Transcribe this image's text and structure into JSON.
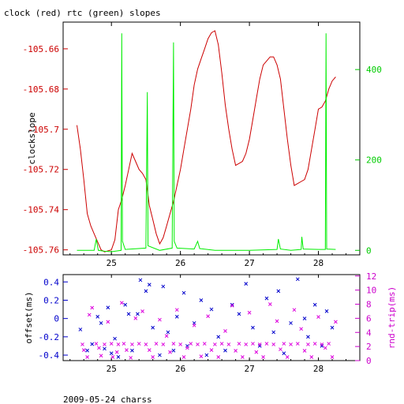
{
  "title": "clock (red) rtc (green) slopes",
  "footer": "2009-05-24 charss",
  "chart_data": [
    {
      "type": "line",
      "x_ticks": [
        25,
        26,
        27,
        28
      ],
      "x_tick_labels": [
        "25",
        "26",
        "27",
        "28"
      ],
      "xlim": [
        24.3,
        28.6
      ],
      "left_axis": {
        "label": "clockslope",
        "ticks": [
          -105.66,
          -105.68,
          -105.7,
          -105.72,
          -105.74,
          -105.76
        ],
        "tick_labels": [
          "-105.66",
          "-105.68",
          "-105.7",
          "-105.72",
          "-105.74",
          "-105.76"
        ],
        "ylim": [
          -105.7625,
          -105.6467
        ],
        "color": "#cc0000"
      },
      "right_axis": {
        "ticks": [
          0,
          200,
          400
        ],
        "tick_labels": [
          "0",
          "200",
          "400"
        ],
        "ylim": [
          -10,
          505
        ],
        "color": "#00cc00"
      },
      "series": [
        {
          "color": "#cc0000",
          "axis": "left",
          "points": [
            [
              24.5,
              -105.698
            ],
            [
              24.55,
              -105.71
            ],
            [
              24.6,
              -105.725
            ],
            [
              24.65,
              -105.742
            ],
            [
              24.7,
              -105.748
            ],
            [
              24.75,
              -105.752
            ],
            [
              24.8,
              -105.756
            ],
            [
              24.85,
              -105.76
            ],
            [
              24.9,
              -105.761
            ],
            [
              25.0,
              -105.76
            ],
            [
              25.05,
              -105.755
            ],
            [
              25.1,
              -105.74
            ],
            [
              25.15,
              -105.735
            ],
            [
              25.2,
              -105.728
            ],
            [
              25.25,
              -105.72
            ],
            [
              25.3,
              -105.712
            ],
            [
              25.35,
              -105.716
            ],
            [
              25.4,
              -105.72
            ],
            [
              25.45,
              -105.722
            ],
            [
              25.5,
              -105.725
            ],
            [
              25.55,
              -105.738
            ],
            [
              25.6,
              -105.745
            ],
            [
              25.65,
              -105.752
            ],
            [
              25.7,
              -105.757
            ],
            [
              25.75,
              -105.754
            ],
            [
              25.8,
              -105.748
            ],
            [
              25.85,
              -105.742
            ],
            [
              25.9,
              -105.736
            ],
            [
              25.95,
              -105.728
            ],
            [
              26.0,
              -105.72
            ],
            [
              26.05,
              -105.71
            ],
            [
              26.1,
              -105.7
            ],
            [
              26.15,
              -105.69
            ],
            [
              26.2,
              -105.678
            ],
            [
              26.25,
              -105.67
            ],
            [
              26.3,
              -105.665
            ],
            [
              26.35,
              -105.66
            ],
            [
              26.4,
              -105.655
            ],
            [
              26.45,
              -105.652
            ],
            [
              26.5,
              -105.651
            ],
            [
              26.55,
              -105.658
            ],
            [
              26.6,
              -105.672
            ],
            [
              26.65,
              -105.688
            ],
            [
              26.7,
              -105.7
            ],
            [
              26.75,
              -105.71
            ],
            [
              26.8,
              -105.718
            ],
            [
              26.85,
              -105.717
            ],
            [
              26.9,
              -105.716
            ],
            [
              26.95,
              -105.712
            ],
            [
              27.0,
              -105.705
            ],
            [
              27.05,
              -105.695
            ],
            [
              27.1,
              -105.685
            ],
            [
              27.15,
              -105.675
            ],
            [
              27.2,
              -105.668
            ],
            [
              27.25,
              -105.666
            ],
            [
              27.3,
              -105.664
            ],
            [
              27.35,
              -105.664
            ],
            [
              27.4,
              -105.668
            ],
            [
              27.45,
              -105.675
            ],
            [
              27.5,
              -105.69
            ],
            [
              27.55,
              -105.705
            ],
            [
              27.6,
              -105.718
            ],
            [
              27.65,
              -105.728
            ],
            [
              27.7,
              -105.727
            ],
            [
              27.75,
              -105.726
            ],
            [
              27.8,
              -105.725
            ],
            [
              27.85,
              -105.72
            ],
            [
              27.9,
              -105.71
            ],
            [
              27.95,
              -105.7
            ],
            [
              28.0,
              -105.69
            ],
            [
              28.05,
              -105.689
            ],
            [
              28.1,
              -105.686
            ],
            [
              28.15,
              -105.68
            ],
            [
              28.2,
              -105.676
            ],
            [
              28.25,
              -105.674
            ]
          ]
        },
        {
          "color": "#00ee00",
          "axis": "right",
          "points": [
            [
              24.5,
              0
            ],
            [
              24.75,
              0
            ],
            [
              24.78,
              25
            ],
            [
              24.81,
              0
            ],
            [
              24.9,
              -2
            ],
            [
              25.0,
              -3
            ],
            [
              25.14,
              0
            ],
            [
              25.15,
              480
            ],
            [
              25.16,
              20
            ],
            [
              25.2,
              2
            ],
            [
              25.5,
              5
            ],
            [
              25.52,
              350
            ],
            [
              25.53,
              10
            ],
            [
              25.7,
              0
            ],
            [
              25.88,
              5
            ],
            [
              25.9,
              460
            ],
            [
              25.91,
              20
            ],
            [
              25.95,
              5
            ],
            [
              26.2,
              3
            ],
            [
              26.25,
              20
            ],
            [
              26.28,
              4
            ],
            [
              26.5,
              0
            ],
            [
              27.0,
              0
            ],
            [
              27.4,
              2
            ],
            [
              27.42,
              25
            ],
            [
              27.45,
              3
            ],
            [
              27.6,
              0
            ],
            [
              27.75,
              2
            ],
            [
              27.76,
              30
            ],
            [
              27.78,
              3
            ],
            [
              28.0,
              2
            ],
            [
              28.1,
              2
            ],
            [
              28.11,
              480
            ],
            [
              28.12,
              3
            ],
            [
              28.25,
              2
            ]
          ]
        }
      ]
    },
    {
      "type": "scatter",
      "x_ticks": [
        25,
        26,
        27,
        28
      ],
      "x_tick_labels": [
        "25",
        "26",
        "27",
        "28"
      ],
      "xlim": [
        24.3,
        28.6
      ],
      "left_axis": {
        "label": "offset(ms)",
        "ticks": [
          0.4,
          0.2,
          0,
          -0.2,
          -0.4
        ],
        "tick_labels": [
          "0.4",
          "0.2",
          "0",
          "-0.2",
          "-0.4"
        ],
        "ylim": [
          -0.46,
          0.48
        ],
        "color": "#0000cc"
      },
      "right_axis": {
        "label": "rnd-trip(ms)",
        "ticks": [
          0,
          2,
          4,
          6,
          8,
          10,
          12
        ],
        "tick_labels": [
          "0",
          "2",
          "4",
          "6",
          "8",
          "10",
          "12"
        ],
        "ylim": [
          0,
          12.2
        ],
        "color": "#cc00cc"
      },
      "series": [
        {
          "color": "#0000cc",
          "axis": "left",
          "points": [
            [
              24.55,
              -0.12
            ],
            [
              24.65,
              -0.35
            ],
            [
              24.72,
              -0.28
            ],
            [
              24.8,
              0.02
            ],
            [
              24.85,
              -0.05
            ],
            [
              24.9,
              -0.33
            ],
            [
              24.95,
              0.12
            ],
            [
              25.0,
              -0.38
            ],
            [
              25.05,
              -0.22
            ],
            [
              25.1,
              -0.42
            ],
            [
              25.2,
              0.15
            ],
            [
              25.25,
              0.05
            ],
            [
              25.3,
              -0.35
            ],
            [
              25.38,
              0.05
            ],
            [
              25.42,
              0.42
            ],
            [
              25.5,
              0.3
            ],
            [
              25.55,
              0.37
            ],
            [
              25.6,
              -0.1
            ],
            [
              25.7,
              -0.4
            ],
            [
              25.75,
              0.35
            ],
            [
              25.82,
              -0.15
            ],
            [
              25.9,
              -0.35
            ],
            [
              25.95,
              0.02
            ],
            [
              26.05,
              0.28
            ],
            [
              26.1,
              -0.3
            ],
            [
              26.2,
              -0.05
            ],
            [
              26.3,
              0.2
            ],
            [
              26.38,
              -0.4
            ],
            [
              26.45,
              0.1
            ],
            [
              26.55,
              -0.2
            ],
            [
              26.65,
              -0.35
            ],
            [
              26.75,
              0.15
            ],
            [
              26.85,
              0.05
            ],
            [
              26.95,
              0.38
            ],
            [
              27.05,
              -0.1
            ],
            [
              27.15,
              -0.3
            ],
            [
              27.25,
              0.22
            ],
            [
              27.35,
              -0.15
            ],
            [
              27.42,
              0.3
            ],
            [
              27.5,
              -0.38
            ],
            [
              27.6,
              -0.05
            ],
            [
              27.7,
              0.43
            ],
            [
              27.8,
              0.0
            ],
            [
              27.85,
              -0.2
            ],
            [
              27.95,
              0.15
            ],
            [
              28.05,
              -0.3
            ],
            [
              28.12,
              0.08
            ],
            [
              28.2,
              -0.1
            ]
          ]
        },
        {
          "color": "#dd00dd",
          "axis": "right",
          "points": [
            [
              24.58,
              2.3
            ],
            [
              24.6,
              1.5
            ],
            [
              24.65,
              0.5
            ],
            [
              24.68,
              6.5
            ],
            [
              24.72,
              7.5
            ],
            [
              24.78,
              2.4
            ],
            [
              24.82,
              1.8
            ],
            [
              24.85,
              0.7
            ],
            [
              24.9,
              2.3
            ],
            [
              24.95,
              5.5
            ],
            [
              25.0,
              2.4
            ],
            [
              25.02,
              0.5
            ],
            [
              25.08,
              1.2
            ],
            [
              25.1,
              2.3
            ],
            [
              25.15,
              8.2
            ],
            [
              25.18,
              2.4
            ],
            [
              25.22,
              1.5
            ],
            [
              25.28,
              0.4
            ],
            [
              25.3,
              2.3
            ],
            [
              25.35,
              6.0
            ],
            [
              25.4,
              2.4
            ],
            [
              25.45,
              7.0
            ],
            [
              25.5,
              2.3
            ],
            [
              25.55,
              1.5
            ],
            [
              25.6,
              0.5
            ],
            [
              25.65,
              2.4
            ],
            [
              25.7,
              5.8
            ],
            [
              25.75,
              2.3
            ],
            [
              25.8,
              3.5
            ],
            [
              25.85,
              1.2
            ],
            [
              25.9,
              2.4
            ],
            [
              25.95,
              7.2
            ],
            [
              26.0,
              2.3
            ],
            [
              26.05,
              0.5
            ],
            [
              26.1,
              1.8
            ],
            [
              26.15,
              2.4
            ],
            [
              26.2,
              5.0
            ],
            [
              26.25,
              2.3
            ],
            [
              26.3,
              0.6
            ],
            [
              26.35,
              2.4
            ],
            [
              26.4,
              6.3
            ],
            [
              26.45,
              1.5
            ],
            [
              26.5,
              2.3
            ],
            [
              26.55,
              0.5
            ],
            [
              26.6,
              2.4
            ],
            [
              26.65,
              4.2
            ],
            [
              26.7,
              2.3
            ],
            [
              26.75,
              7.8
            ],
            [
              26.8,
              1.4
            ],
            [
              26.85,
              2.4
            ],
            [
              26.9,
              0.5
            ],
            [
              26.95,
              2.3
            ],
            [
              27.0,
              6.8
            ],
            [
              27.05,
              2.4
            ],
            [
              27.1,
              1.2
            ],
            [
              27.15,
              2.3
            ],
            [
              27.2,
              0.5
            ],
            [
              27.25,
              2.4
            ],
            [
              27.3,
              8.0
            ],
            [
              27.35,
              2.3
            ],
            [
              27.4,
              5.6
            ],
            [
              27.45,
              1.6
            ],
            [
              27.5,
              2.4
            ],
            [
              27.55,
              0.5
            ],
            [
              27.6,
              2.3
            ],
            [
              27.65,
              7.2
            ],
            [
              27.7,
              2.4
            ],
            [
              27.75,
              4.5
            ],
            [
              27.8,
              1.4
            ],
            [
              27.85,
              2.3
            ],
            [
              27.9,
              0.5
            ],
            [
              27.95,
              2.4
            ],
            [
              28.0,
              6.2
            ],
            [
              28.05,
              2.3
            ],
            [
              28.1,
              1.8
            ],
            [
              28.15,
              2.4
            ],
            [
              28.2,
              0.5
            ],
            [
              28.25,
              5.5
            ]
          ]
        }
      ]
    }
  ]
}
